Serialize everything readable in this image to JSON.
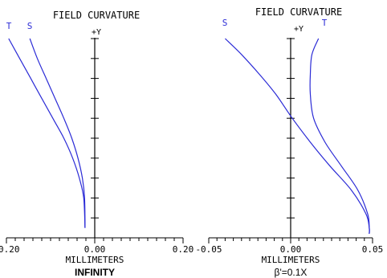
{
  "colors": {
    "curve": "#2b2bd6",
    "axis": "#000000",
    "text": "#000000"
  },
  "chart_data": [
    {
      "type": "line",
      "title": "FIELD CURVATURE",
      "yaxis_label": "+Y",
      "xlabel": "MILLIMETERS",
      "subtitle": "INFINITY",
      "xlim": [
        -0.2,
        0.2
      ],
      "ylim": [
        0,
        1
      ],
      "x_tick_labels": [
        "-0.20",
        "0.00",
        "0.20"
      ],
      "x_tick_values": [
        -0.2,
        0.0,
        0.2
      ],
      "x_minor_step": 0.02,
      "y_tick_values": [
        0.1,
        0.2,
        0.3,
        0.4,
        0.5,
        0.6,
        0.7,
        0.8,
        0.9,
        1.0
      ],
      "grid": false,
      "legend": "curve labels at top",
      "series": [
        {
          "name": "T",
          "x": [
            -0.195,
            -0.17,
            -0.145,
            -0.12,
            -0.095,
            -0.07,
            -0.05,
            -0.035,
            -0.025,
            -0.022
          ],
          "y": [
            1.0,
            0.9,
            0.8,
            0.7,
            0.6,
            0.5,
            0.4,
            0.3,
            0.2,
            0.05
          ]
        },
        {
          "name": "S",
          "x": [
            -0.147,
            -0.13,
            -0.11,
            -0.09,
            -0.07,
            -0.052,
            -0.038,
            -0.028,
            -0.023,
            -0.022
          ],
          "y": [
            1.0,
            0.9,
            0.8,
            0.7,
            0.6,
            0.5,
            0.4,
            0.3,
            0.2,
            0.05
          ]
        }
      ]
    },
    {
      "type": "line",
      "title": "FIELD CURVATURE",
      "yaxis_label": "+Y",
      "xlabel": "MILLIMETERS",
      "subtitle": "β'=0.1X",
      "xlim": [
        -0.05,
        0.05
      ],
      "ylim": [
        0,
        1
      ],
      "x_tick_labels": [
        "-0.05",
        "0.00",
        "0.05"
      ],
      "x_tick_values": [
        -0.05,
        0.0,
        0.05
      ],
      "x_minor_step": 0.005,
      "y_tick_values": [
        0.1,
        0.2,
        0.3,
        0.4,
        0.5,
        0.6,
        0.7,
        0.8,
        0.9,
        1.0
      ],
      "grid": false,
      "legend": "curve labels at top",
      "series": [
        {
          "name": "S",
          "x": [
            -0.04,
            -0.03,
            -0.019,
            -0.009,
            0.001,
            0.012,
            0.024,
            0.037,
            0.046,
            0.048,
            0.048
          ],
          "y": [
            1.0,
            0.92,
            0.82,
            0.72,
            0.6,
            0.48,
            0.36,
            0.24,
            0.12,
            0.05,
            0.02
          ]
        },
        {
          "name": "T",
          "x": [
            0.017,
            0.013,
            0.012,
            0.012,
            0.014,
            0.021,
            0.031,
            0.041,
            0.047,
            0.048,
            0.048
          ],
          "y": [
            1.0,
            0.92,
            0.82,
            0.72,
            0.6,
            0.48,
            0.36,
            0.24,
            0.12,
            0.05,
            0.02
          ]
        }
      ]
    }
  ]
}
